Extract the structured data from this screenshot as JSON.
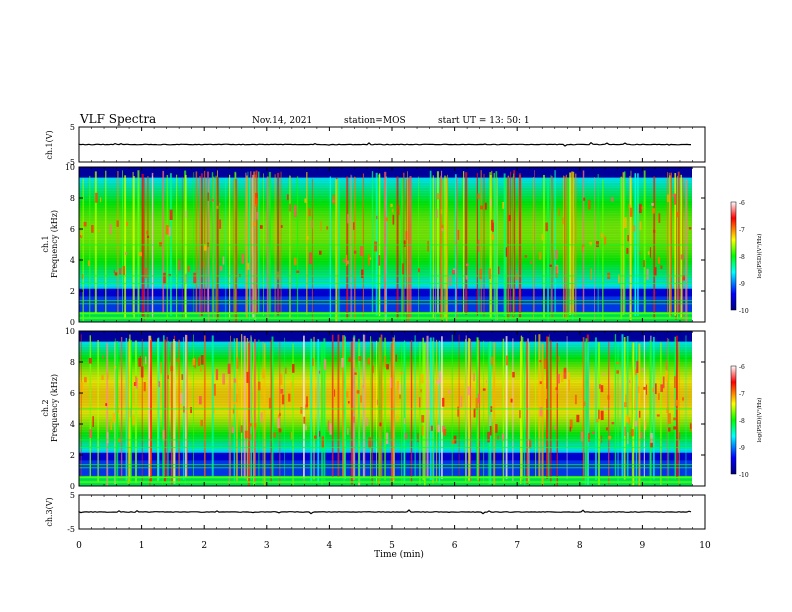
{
  "header": {
    "title": "VLF Spectra",
    "date": "Nov.14, 2021",
    "station": "station=MOS",
    "start_ut": "start UT =  13: 50: 1"
  },
  "chart_data": [
    {
      "type": "line",
      "panel": "ch1_waveform",
      "ylabel": "ch.1(V)",
      "yticks": [
        "5",
        "-5"
      ],
      "ylim": [
        -5,
        5
      ],
      "xlim": [
        0,
        10
      ],
      "baseline": 0
    },
    {
      "type": "heatmap",
      "panel": "ch1_spectrogram",
      "ylabel_line1": "ch.1",
      "ylabel_line2": "Frequency (kHz)",
      "yticks": [
        "0",
        "2",
        "4",
        "6",
        "8",
        "10"
      ],
      "ylim": [
        0,
        10
      ],
      "xlim": [
        0,
        10
      ],
      "colorbar": {
        "label": "log(PSD)(V²/Hz)",
        "ticks": [
          "-6",
          "-7",
          "-8",
          "-9",
          "-10"
        ],
        "range": [
          -10,
          -6
        ],
        "colors": [
          "#00007f",
          "#0000ff",
          "#00ffff",
          "#00ff00",
          "#ffff00",
          "#ff0000",
          "#ffffff"
        ]
      }
    },
    {
      "type": "heatmap",
      "panel": "ch2_spectrogram",
      "ylabel_line1": "ch.2",
      "ylabel_line2": "Frequency (kHz)",
      "yticks": [
        "0",
        "2",
        "4",
        "6",
        "8",
        "10"
      ],
      "ylim": [
        0,
        10
      ],
      "xlim": [
        0,
        10
      ],
      "colorbar": {
        "label": "log(PSD)(V²/Hz)",
        "ticks": [
          "-6",
          "-7",
          "-8",
          "-9",
          "-10"
        ],
        "range": [
          -10,
          -6
        ],
        "colors": [
          "#00007f",
          "#0000ff",
          "#00ffff",
          "#00ff00",
          "#ffff00",
          "#ff0000",
          "#ffffff"
        ]
      }
    },
    {
      "type": "line",
      "panel": "ch3_waveform",
      "ylabel": "ch.3(V)",
      "yticks": [
        "5",
        "-5"
      ],
      "ylim": [
        -5,
        5
      ],
      "xlim": [
        0,
        10
      ],
      "baseline": 0
    }
  ],
  "xaxis": {
    "label": "Time (min)",
    "ticks": [
      "0",
      "1",
      "2",
      "3",
      "4",
      "5",
      "6",
      "7",
      "8",
      "9",
      "10"
    ]
  }
}
